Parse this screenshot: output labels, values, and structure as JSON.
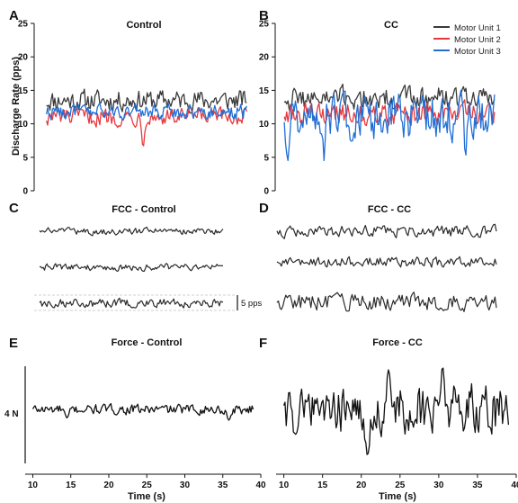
{
  "colors": {
    "unit1": "#3a3a3a",
    "unit2": "#e8383d",
    "unit3": "#1f6fd6",
    "trace": "#2b2b2b",
    "ref_line": "#b8b8b8"
  },
  "panels": {
    "A": {
      "letter": "A",
      "title": "Control"
    },
    "B": {
      "letter": "B",
      "title": "CC"
    },
    "C": {
      "letter": "C",
      "title": "FCC - Control"
    },
    "D": {
      "letter": "D",
      "title": "FCC - CC"
    },
    "E": {
      "letter": "E",
      "title": "Force - Control"
    },
    "F": {
      "letter": "F",
      "title": "Force - CC"
    }
  },
  "y_axis_label": "Discharge Rate (pps)",
  "x_axis_label": "Time (s)",
  "scale_bar_pps": "5 pps",
  "scale_bar_force": "4 N",
  "chart_data": [
    {
      "panel": "A",
      "type": "line",
      "title": "Control",
      "ylabel": "Discharge Rate (pps)",
      "ylim": [
        0,
        25
      ],
      "yticks": [
        0,
        5,
        10,
        15,
        20,
        25
      ],
      "xlim": [
        9,
        40
      ],
      "series": [
        {
          "name": "Motor Unit 1",
          "x_start": 10,
          "x_end": 39,
          "mean": 13.5,
          "amp": 1.4,
          "dips": []
        },
        {
          "name": "Motor Unit 2",
          "x_start": 10,
          "x_end": 39,
          "mean": 11.0,
          "amp": 1.2,
          "dips": [
            {
              "x": 24,
              "y": 6.5
            }
          ]
        },
        {
          "name": "Motor Unit 3",
          "x_start": 10,
          "x_end": 39,
          "mean": 11.8,
          "amp": 1.0,
          "dips": []
        }
      ]
    },
    {
      "panel": "B",
      "type": "line",
      "title": "CC",
      "ylim": [
        0,
        25
      ],
      "yticks": [
        0,
        5,
        10,
        15,
        20,
        25
      ],
      "xlim": [
        9,
        40
      ],
      "legend": [
        "Motor Unit 1",
        "Motor Unit 2",
        "Motor Unit 3"
      ],
      "legend_position": "top-right",
      "series": [
        {
          "name": "Motor Unit 1",
          "x_start": 10,
          "x_end": 39,
          "mean": 13.8,
          "amp": 1.6,
          "dips": []
        },
        {
          "name": "Motor Unit 2",
          "x_start": 10,
          "x_end": 39,
          "mean": 11.5,
          "amp": 1.5,
          "dips": []
        },
        {
          "name": "Motor Unit 3",
          "x_start": 10,
          "x_end": 39,
          "mean": 11.0,
          "amp": 3.0,
          "dips": [
            {
              "x": 10.5,
              "y": 4.5
            },
            {
              "x": 15.5,
              "y": 4.5
            },
            {
              "x": 35,
              "y": 5.0
            }
          ]
        }
      ]
    },
    {
      "panel": "C",
      "type": "line",
      "title": "FCC - Control",
      "traces": [
        {
          "amp": 0.8
        },
        {
          "amp": 0.8
        },
        {
          "amp": 1.0
        }
      ]
    },
    {
      "panel": "D",
      "type": "line",
      "title": "FCC - CC",
      "traces": [
        {
          "amp": 1.4
        },
        {
          "amp": 1.3
        },
        {
          "amp": 2.0
        }
      ]
    },
    {
      "panel": "E",
      "type": "line",
      "title": "Force - Control",
      "x_start": 10,
      "x_end": 39,
      "amp": 0.8,
      "dips": [
        {
          "x": 14.5,
          "y": -1.6
        },
        {
          "x": 35.8,
          "y": -2.0
        }
      ]
    },
    {
      "panel": "F",
      "type": "line",
      "title": "Force - CC",
      "x_start": 10,
      "x_end": 39,
      "amp": 3.0,
      "dips": [
        {
          "x": 20.8,
          "y": -6.5
        },
        {
          "x": 11.5,
          "y": -3.5
        }
      ],
      "peaks": [
        {
          "x": 23.5,
          "y": 5.5
        },
        {
          "x": 30.5,
          "y": 6.0
        }
      ]
    }
  ],
  "x_ticks": [
    10,
    15,
    20,
    25,
    30,
    35,
    40
  ]
}
